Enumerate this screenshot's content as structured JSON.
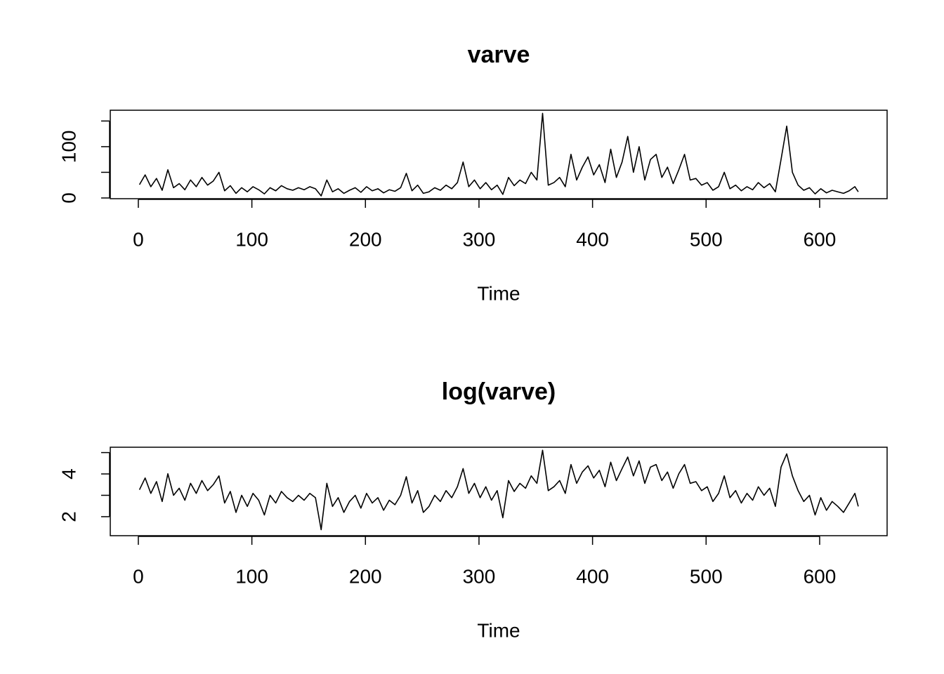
{
  "chart_data": [
    {
      "type": "line",
      "title": "varve",
      "xlabel": "Time",
      "color": "#000000",
      "x": [
        1,
        6,
        11,
        16,
        21,
        26,
        31,
        36,
        41,
        46,
        51,
        56,
        61,
        66,
        71,
        76,
        81,
        86,
        91,
        96,
        101,
        106,
        111,
        116,
        121,
        126,
        131,
        136,
        141,
        146,
        151,
        156,
        161,
        166,
        171,
        176,
        181,
        186,
        191,
        196,
        201,
        206,
        211,
        216,
        221,
        226,
        231,
        236,
        241,
        246,
        251,
        256,
        261,
        266,
        271,
        276,
        281,
        286,
        291,
        296,
        301,
        306,
        311,
        316,
        321,
        326,
        331,
        336,
        341,
        346,
        351,
        356,
        361,
        366,
        371,
        376,
        381,
        386,
        391,
        396,
        401,
        406,
        411,
        416,
        421,
        426,
        431,
        436,
        441,
        446,
        451,
        456,
        461,
        466,
        471,
        476,
        481,
        486,
        491,
        496,
        501,
        506,
        511,
        516,
        521,
        526,
        531,
        536,
        541,
        546,
        551,
        556,
        561,
        566,
        571,
        576,
        581,
        586,
        591,
        596,
        601,
        606,
        611,
        616,
        621,
        626,
        631,
        634
      ],
      "values": [
        26,
        45,
        22,
        38,
        15,
        55,
        20,
        28,
        16,
        35,
        22,
        40,
        25,
        33,
        50,
        14,
        24,
        9,
        20,
        12,
        22,
        16,
        8,
        20,
        14,
        24,
        18,
        15,
        20,
        16,
        22,
        18,
        4,
        35,
        12,
        18,
        9,
        15,
        20,
        11,
        22,
        14,
        18,
        10,
        16,
        13,
        20,
        48,
        14,
        25,
        9,
        12,
        20,
        15,
        25,
        18,
        30,
        70,
        22,
        35,
        18,
        30,
        16,
        25,
        7,
        40,
        24,
        35,
        28,
        50,
        35,
        165,
        25,
        30,
        40,
        22,
        85,
        35,
        60,
        80,
        45,
        65,
        30,
        95,
        40,
        70,
        120,
        50,
        100,
        35,
        75,
        85,
        40,
        60,
        28,
        55,
        85,
        35,
        38,
        25,
        30,
        15,
        22,
        50,
        18,
        25,
        14,
        22,
        16,
        30,
        20,
        28,
        12,
        75,
        140,
        50,
        25,
        15,
        20,
        8,
        18,
        10,
        15,
        12,
        9,
        14,
        22,
        12
      ],
      "xlim": [
        -24.7,
        659.4
      ],
      "xticks": [
        0,
        100,
        200,
        300,
        400,
        500,
        600
      ],
      "ylim": [
        -1.4,
        171
      ],
      "yticks": [
        0,
        {
          "value": 50,
          "label": null
        },
        100,
        {
          "value": 150,
          "label": null
        }
      ]
    },
    {
      "type": "line",
      "title": "log(varve)",
      "xlabel": "Time",
      "color": "#000000",
      "x": [
        1,
        6,
        11,
        16,
        21,
        26,
        31,
        36,
        41,
        46,
        51,
        56,
        61,
        66,
        71,
        76,
        81,
        86,
        91,
        96,
        101,
        106,
        111,
        116,
        121,
        126,
        131,
        136,
        141,
        146,
        151,
        156,
        161,
        166,
        171,
        176,
        181,
        186,
        191,
        196,
        201,
        206,
        211,
        216,
        221,
        226,
        231,
        236,
        241,
        246,
        251,
        256,
        261,
        266,
        271,
        276,
        281,
        286,
        291,
        296,
        301,
        306,
        311,
        316,
        321,
        326,
        331,
        336,
        341,
        346,
        351,
        356,
        361,
        366,
        371,
        376,
        381,
        386,
        391,
        396,
        401,
        406,
        411,
        416,
        421,
        426,
        431,
        436,
        441,
        446,
        451,
        456,
        461,
        466,
        471,
        476,
        481,
        486,
        491,
        496,
        501,
        506,
        511,
        516,
        521,
        526,
        531,
        536,
        541,
        546,
        551,
        556,
        561,
        566,
        571,
        576,
        581,
        586,
        591,
        596,
        601,
        606,
        611,
        616,
        621,
        626,
        631,
        634
      ],
      "values": [
        3.26,
        3.81,
        3.09,
        3.64,
        2.71,
        4.01,
        3.0,
        3.33,
        2.77,
        3.56,
        3.09,
        3.69,
        3.22,
        3.5,
        3.91,
        2.64,
        3.18,
        2.2,
        3.0,
        2.48,
        3.09,
        2.77,
        2.08,
        3.0,
        2.64,
        3.18,
        2.89,
        2.71,
        3.0,
        2.77,
        3.09,
        2.89,
        1.39,
        3.56,
        2.48,
        2.89,
        2.2,
        2.71,
        3.0,
        2.4,
        3.09,
        2.64,
        2.89,
        2.3,
        2.77,
        2.56,
        3.0,
        3.87,
        2.64,
        3.22,
        2.2,
        2.48,
        3.0,
        2.71,
        3.22,
        2.89,
        3.4,
        4.25,
        3.09,
        3.56,
        2.89,
        3.4,
        2.77,
        3.22,
        1.95,
        3.69,
        3.18,
        3.56,
        3.33,
        3.91,
        3.56,
        5.11,
        3.22,
        3.4,
        3.69,
        3.09,
        4.44,
        3.56,
        4.09,
        4.38,
        3.81,
        4.17,
        3.4,
        4.55,
        3.69,
        4.25,
        4.79,
        3.91,
        4.61,
        3.56,
        4.32,
        4.44,
        3.69,
        4.09,
        3.33,
        4.01,
        4.44,
        3.56,
        3.64,
        3.22,
        3.4,
        2.71,
        3.09,
        3.91,
        2.89,
        3.22,
        2.64,
        3.09,
        2.77,
        3.4,
        3.0,
        3.33,
        2.48,
        4.32,
        4.94,
        3.91,
        3.22,
        2.71,
        3.0,
        2.08,
        2.89,
        2.3,
        2.71,
        2.48,
        2.2,
        2.64,
        3.09,
        2.48
      ],
      "xlim": [
        -24.7,
        659.4
      ],
      "xticks": [
        0,
        100,
        200,
        300,
        400,
        500,
        600
      ],
      "ylim": [
        1.11,
        5.25
      ],
      "yticks": [
        2,
        {
          "value": 3,
          "label": null
        },
        4,
        {
          "value": 5,
          "label": null
        }
      ]
    }
  ]
}
